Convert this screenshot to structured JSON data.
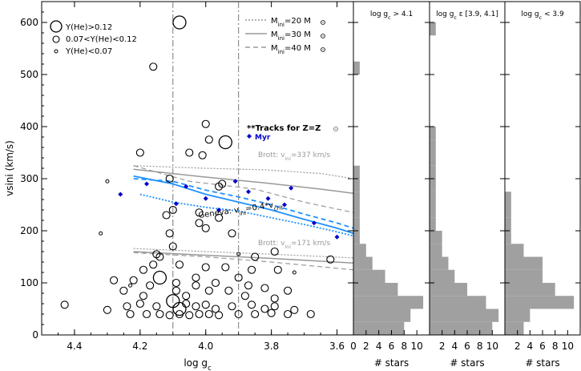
{
  "chart_data": [
    {
      "type": "scatter",
      "xlabel": "log g",
      "xlabel_sub": "c",
      "ylabel": "vsini (km/s)",
      "xlim": [
        4.5,
        3.55
      ],
      "ylim": [
        0,
        640
      ],
      "x_ticks": [
        "4.4",
        "4.2",
        "4.0",
        "3.8",
        "3.6"
      ],
      "y_ticks": [
        "0",
        "100",
        "200",
        "300",
        "400",
        "500",
        "600"
      ],
      "vlines": [
        4.1,
        3.9
      ],
      "legend_sizes": [
        "Y(He)>0.12",
        "0.07<Y(He)<0.12",
        "Y(He)<0.07"
      ],
      "legend_tracks": [
        {
          "label": "M",
          "sub": "ini",
          "tail": "=20 M",
          "style": "dotted",
          "color": "#999999"
        },
        {
          "label": "M",
          "sub": "ini",
          "tail": "=30 M",
          "style": "solid",
          "color": "#999999"
        },
        {
          "label": "M",
          "sub": "ini",
          "tail": "=40 M",
          "style": "dashed",
          "color": "#999999"
        }
      ],
      "tracks_note": "**Tracks for Z=Z",
      "myr_label": "Myr",
      "brott_high_label": "Brott: v",
      "brott_high_sub": "ini",
      "brott_high_tail": "=337 km/s",
      "brott_low_label": "Brott: v",
      "brott_low_sub": "ini",
      "brott_low_tail": "=171 km/s",
      "geneva_label": "Geneva: v",
      "geneva_sub": "ini",
      "geneva_mid": "=0.4*v",
      "geneva_sub2": "crit",
      "colors": {
        "grey": "#999999",
        "blue": "#1e90ff",
        "myr": "#0000cc"
      },
      "points_large": [
        [
          4.08,
          600
        ],
        [
          3.94,
          370
        ],
        [
          4.14,
          110
        ],
        [
          4.1,
          65
        ],
        [
          4.08,
          50
        ]
      ],
      "points_medium": [
        [
          4.16,
          515
        ],
        [
          4.2,
          350
        ],
        [
          4.05,
          350
        ],
        [
          4.0,
          405
        ],
        [
          3.99,
          375
        ],
        [
          4.01,
          345
        ],
        [
          4.11,
          300
        ],
        [
          3.96,
          285
        ],
        [
          3.95,
          290
        ],
        [
          4.1,
          240
        ],
        [
          4.12,
          230
        ],
        [
          4.02,
          235
        ],
        [
          3.96,
          225
        ],
        [
          4.11,
          195
        ],
        [
          4.02,
          215
        ],
        [
          4.0,
          205
        ],
        [
          3.92,
          195
        ],
        [
          4.1,
          170
        ],
        [
          4.15,
          155
        ],
        [
          4.14,
          150
        ],
        [
          3.85,
          150
        ],
        [
          3.79,
          160
        ],
        [
          3.62,
          145
        ],
        [
          4.08,
          135
        ],
        [
          4.19,
          125
        ],
        [
          4.16,
          135
        ],
        [
          4.0,
          130
        ],
        [
          3.94,
          130
        ],
        [
          3.86,
          125
        ],
        [
          3.78,
          125
        ],
        [
          4.28,
          105
        ],
        [
          4.22,
          105
        ],
        [
          4.17,
          95
        ],
        [
          4.09,
          100
        ],
        [
          4.03,
          110
        ],
        [
          4.03,
          95
        ],
        [
          3.97,
          100
        ],
        [
          3.9,
          110
        ],
        [
          3.87,
          95
        ],
        [
          3.82,
          90
        ],
        [
          3.75,
          85
        ],
        [
          4.25,
          85
        ],
        [
          4.19,
          75
        ],
        [
          4.09,
          85
        ],
        [
          4.06,
          75
        ],
        [
          3.99,
          85
        ],
        [
          3.93,
          85
        ],
        [
          3.88,
          75
        ],
        [
          3.79,
          70
        ],
        [
          4.43,
          58
        ],
        [
          4.3,
          48
        ],
        [
          4.24,
          55
        ],
        [
          4.2,
          60
        ],
        [
          4.15,
          55
        ],
        [
          4.06,
          60
        ],
        [
          4.03,
          55
        ],
        [
          4.0,
          58
        ],
        [
          3.97,
          50
        ],
        [
          3.92,
          55
        ],
        [
          3.86,
          58
        ],
        [
          3.82,
          50
        ],
        [
          3.79,
          55
        ],
        [
          3.73,
          48
        ],
        [
          4.23,
          40
        ],
        [
          4.18,
          40
        ],
        [
          4.14,
          40
        ],
        [
          4.11,
          38
        ],
        [
          4.08,
          40
        ],
        [
          4.05,
          38
        ],
        [
          4.02,
          40
        ],
        [
          3.99,
          40
        ],
        [
          3.96,
          38
        ],
        [
          3.9,
          40
        ],
        [
          3.85,
          40
        ],
        [
          3.8,
          42
        ],
        [
          3.75,
          40
        ],
        [
          3.68,
          40
        ]
      ],
      "points_small": [
        [
          4.3,
          295
        ],
        [
          4.32,
          195
        ],
        [
          3.9,
          155
        ],
        [
          4.23,
          95
        ],
        [
          3.73,
          120
        ]
      ],
      "track_20": [
        [
          4.22,
          325
        ],
        [
          4.0,
          320
        ],
        [
          3.82,
          317
        ],
        [
          3.65,
          310
        ],
        [
          3.55,
          300
        ]
      ],
      "track_30": [
        [
          4.22,
          318
        ],
        [
          4.0,
          303
        ],
        [
          3.82,
          292
        ],
        [
          3.65,
          280
        ],
        [
          3.55,
          272
        ]
      ],
      "track_40": [
        [
          4.22,
          325
        ],
        [
          4.05,
          295
        ],
        [
          3.85,
          280
        ],
        [
          3.7,
          255
        ],
        [
          3.55,
          235
        ]
      ],
      "track_20_low": [
        [
          4.22,
          166
        ],
        [
          4.0,
          160
        ],
        [
          3.8,
          155
        ],
        [
          3.55,
          148
        ]
      ],
      "track_30_low": [
        [
          4.22,
          160
        ],
        [
          4.0,
          153
        ],
        [
          3.8,
          147
        ],
        [
          3.55,
          138
        ]
      ],
      "track_40_low": [
        [
          4.22,
          158
        ],
        [
          4.0,
          150
        ],
        [
          3.8,
          140
        ],
        [
          3.55,
          125
        ]
      ],
      "geneva_solid": [
        [
          4.22,
          305
        ],
        [
          4.1,
          290
        ],
        [
          4.0,
          270
        ],
        [
          3.9,
          255
        ],
        [
          3.8,
          240
        ],
        [
          3.7,
          222
        ],
        [
          3.6,
          205
        ],
        [
          3.55,
          195
        ]
      ],
      "geneva_dashed": [
        [
          4.22,
          300
        ],
        [
          4.1,
          295
        ],
        [
          4.0,
          278
        ],
        [
          3.9,
          265
        ],
        [
          3.8,
          250
        ],
        [
          3.7,
          232
        ],
        [
          3.6,
          215
        ],
        [
          3.55,
          205
        ]
      ],
      "geneva_dotted": [
        [
          4.2,
          270
        ],
        [
          4.1,
          255
        ],
        [
          4.0,
          245
        ],
        [
          3.9,
          238
        ],
        [
          3.8,
          225
        ],
        [
          3.7,
          212
        ],
        [
          3.6,
          198
        ],
        [
          3.55,
          190
        ]
      ],
      "myr_markers": [
        [
          4.26,
          270
        ],
        [
          4.18,
          290
        ],
        [
          4.09,
          252
        ],
        [
          4.06,
          285
        ],
        [
          4.0,
          262
        ],
        [
          3.96,
          240
        ],
        [
          3.91,
          295
        ],
        [
          3.87,
          275
        ],
        [
          3.81,
          262
        ],
        [
          3.76,
          250
        ],
        [
          3.74,
          282
        ],
        [
          3.67,
          215
        ],
        [
          3.6,
          188
        ]
      ]
    },
    {
      "type": "bar",
      "orientation": "horizontal",
      "title": "log g",
      "title_sub": "c",
      "title_tail": " > 4.1",
      "xlabel": "# stars",
      "x_ticks": [
        "0",
        "2",
        "4",
        "6",
        "8",
        "10"
      ],
      "xlim": [
        0,
        12
      ],
      "bin_width": 25,
      "bins_start": [
        0,
        25,
        50,
        75,
        100,
        125,
        150,
        175,
        200,
        225,
        250,
        275,
        300,
        325,
        350,
        375,
        400,
        425,
        450,
        475,
        500,
        525,
        550,
        575,
        600
      ],
      "values": [
        8,
        9,
        11,
        7,
        5,
        3,
        2,
        1,
        1,
        1,
        1,
        1,
        1,
        0,
        0,
        0,
        0,
        0,
        0,
        0,
        1,
        0,
        0,
        0,
        0
      ]
    },
    {
      "type": "bar",
      "orientation": "horizontal",
      "title": "log g",
      "title_sub": "c",
      "title_tail": " ε [3.9, 4.1]",
      "xlabel": "# stars",
      "x_ticks": [
        "2",
        "4",
        "6",
        "8",
        "10"
      ],
      "xlim": [
        0,
        12
      ],
      "bin_width": 25,
      "bins_start": [
        0,
        25,
        50,
        75,
        100,
        125,
        150,
        175,
        200,
        225,
        250,
        275,
        300,
        325,
        350,
        375,
        400,
        425,
        450,
        475,
        500,
        525,
        550,
        575,
        600
      ],
      "values": [
        10,
        11,
        9,
        6,
        4,
        3,
        2,
        2,
        1,
        1,
        1,
        1,
        1,
        1,
        1,
        1,
        0,
        0,
        0,
        0,
        0,
        0,
        0,
        1,
        0
      ]
    },
    {
      "type": "bar",
      "orientation": "horizontal",
      "title": "log g",
      "title_sub": "c",
      "title_tail": " < 3.9",
      "xlabel": "# stars",
      "x_ticks": [
        "2",
        "4",
        "6",
        "8",
        "10"
      ],
      "xlim": [
        0,
        12
      ],
      "bin_width": 25,
      "bins_start": [
        0,
        25,
        50,
        75,
        100,
        125,
        150,
        175,
        200,
        225,
        250,
        275,
        300,
        325,
        350,
        375,
        400,
        425,
        450,
        475,
        500,
        525,
        550,
        575,
        600
      ],
      "values": [
        3,
        4,
        11,
        8,
        6,
        6,
        3,
        1,
        1,
        1,
        1,
        0,
        0,
        0,
        0,
        0,
        0,
        0,
        0,
        0,
        0,
        0,
        0,
        0,
        0
      ]
    }
  ]
}
